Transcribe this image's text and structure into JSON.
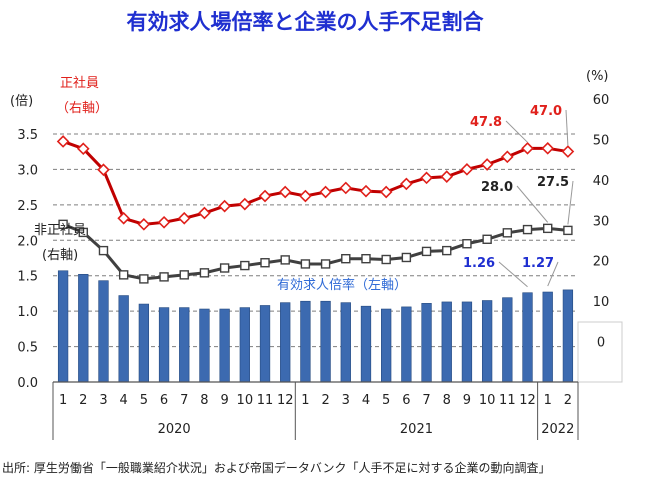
{
  "title": "有効求人場倍率と企業の人手不足割合",
  "source": "出所: 厚生労働省「一般職業紹介状況」および帝国データバンク「人手不足に対する企業の動向調査」",
  "chart_data": {
    "type": "bar",
    "left_axis": {
      "unit": "(倍)",
      "ticks": [
        "0.0",
        "0.5",
        "1.0",
        "1.5",
        "2.0",
        "2.5",
        "3.0",
        "3.5"
      ],
      "ylim": [
        0,
        3.5
      ]
    },
    "right_axis": {
      "unit": "(%)",
      "ticks": [
        "0",
        "10",
        "20",
        "30",
        "40",
        "50",
        "60"
      ],
      "ylim": [
        -10,
        60
      ]
    },
    "x_month_labels": [
      "1",
      "2",
      "3",
      "4",
      "5",
      "6",
      "7",
      "8",
      "9",
      "10",
      "11",
      "12",
      "1",
      "2",
      "3",
      "4",
      "5",
      "6",
      "7",
      "8",
      "9",
      "10",
      "11",
      "12",
      "1",
      "2"
    ],
    "year_labels": [
      "2020",
      "2021",
      "2022"
    ],
    "grid": true,
    "series": [
      {
        "name": "有効求人倍率（左軸）",
        "type": "bar",
        "axis": "left",
        "color": "#3c6ab0",
        "values": [
          1.57,
          1.52,
          1.43,
          1.22,
          1.1,
          1.05,
          1.05,
          1.03,
          1.03,
          1.05,
          1.08,
          1.12,
          1.14,
          1.14,
          1.12,
          1.07,
          1.03,
          1.06,
          1.11,
          1.13,
          1.13,
          1.15,
          1.19,
          1.26,
          1.27,
          1.3
        ]
      },
      {
        "name": "正社員（右軸）",
        "type": "line",
        "axis": "right",
        "color": "#c00000",
        "values": [
          49.5,
          47.7,
          42.5,
          30.5,
          29.0,
          29.5,
          30.5,
          31.8,
          33.5,
          34.0,
          36.0,
          37.0,
          36.0,
          37.0,
          38.0,
          37.2,
          37.0,
          39.0,
          40.5,
          40.8,
          42.6,
          43.8,
          45.7,
          47.8,
          47.8,
          47.0
        ]
      },
      {
        "name": "非正社員（右軸）",
        "type": "line",
        "axis": "right",
        "color": "#404040",
        "values": [
          29.0,
          27.0,
          22.5,
          16.5,
          15.5,
          16.0,
          16.5,
          17.0,
          18.2,
          18.8,
          19.5,
          20.2,
          19.2,
          19.2,
          20.5,
          20.5,
          20.3,
          20.8,
          22.3,
          22.5,
          24.2,
          25.3,
          26.9,
          27.7,
          28.0,
          27.5
        ]
      }
    ],
    "annotations": [
      {
        "text": "47.8",
        "series": "正社員（右軸）",
        "index": 23
      },
      {
        "text": "47.0",
        "series": "正社員（右軸）",
        "index": 25
      },
      {
        "text": "28.0",
        "series": "非正社員（右軸）",
        "index": 24
      },
      {
        "text": "27.5",
        "series": "非正社員（右軸）",
        "index": 25
      },
      {
        "text": "1.26",
        "series": "有効求人倍率（左軸）",
        "index": 23
      },
      {
        "text": "1.27",
        "series": "有効求人倍率（左軸）",
        "index": 24
      }
    ],
    "series_labels": {
      "seishain_line1": "正社員",
      "seishain_line2": "（右軸）",
      "hiseishain_line1": "非正社員",
      "hiseishain_line2": "(右軸)",
      "bar": "有効求人倍率（左軸）"
    }
  }
}
